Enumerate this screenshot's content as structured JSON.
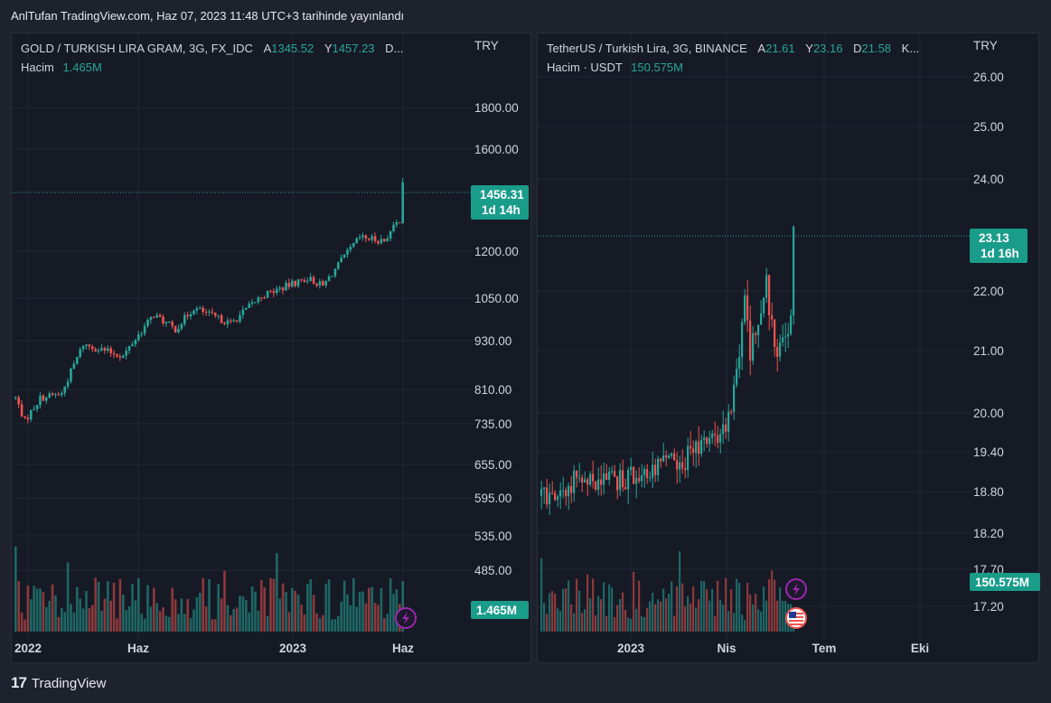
{
  "header": {
    "title": "AnlTufan TradingView.com, Haz 07, 2023 11:48 UTC+3 tarihinde yayınlandı"
  },
  "footer": {
    "logo_mark": "17",
    "brand": "TradingView"
  },
  "colors": {
    "up": "#26a69a",
    "down": "#ef5350",
    "bg": "#161a25",
    "grid": "#232734",
    "tag": "#1a9c8a",
    "event": "#9c27b0"
  },
  "icons": {
    "event_flash": "lightning-bolt-icon",
    "event_flag": "us-flag-icon"
  },
  "chart_data": [
    {
      "type": "candlestick",
      "legend": {
        "title": "GOLD / TURKISH LIRA GRAM, 3G, FX_IDC",
        "items": [
          {
            "key": "A",
            "value": "1345.52"
          },
          {
            "key": "Y",
            "value": "1457.23"
          },
          {
            "key": "D...",
            "value": ""
          }
        ],
        "volume_label": "Hacim",
        "volume_value": "1.465M"
      },
      "currency": "TRY",
      "scale": "log",
      "ylim": [
        500,
        2150
      ],
      "y_ticks": [
        "1800.00",
        "1600.00",
        "1200.00",
        "1050.00",
        "930.00",
        "810.00",
        "735.00",
        "655.00",
        "595.00",
        "535.00",
        "485.00"
      ],
      "x_ticks": [
        "2022",
        "Haz",
        "2023",
        "Haz"
      ],
      "last_price": "1456.31",
      "countdown": "1d 14h",
      "volume_tag": "1.465M",
      "anchors": [
        [
          0,
          790
        ],
        [
          3,
          740
        ],
        [
          8,
          790
        ],
        [
          15,
          800
        ],
        [
          22,
          920
        ],
        [
          35,
          890
        ],
        [
          45,
          1000
        ],
        [
          52,
          960
        ],
        [
          58,
          1020
        ],
        [
          70,
          975
        ],
        [
          80,
          1055
        ],
        [
          95,
          1110
        ],
        [
          100,
          1085
        ],
        [
          112,
          1245
        ],
        [
          120,
          1235
        ],
        [
          125,
          1310
        ],
        [
          126,
          1456
        ]
      ],
      "n_candles": 127
    },
    {
      "type": "candlestick",
      "legend": {
        "title": "TetherUS / Turkish Lira, 3G, BINANCE",
        "items": [
          {
            "key": "A",
            "value": "21.61"
          },
          {
            "key": "Y",
            "value": "23.16"
          },
          {
            "key": "D",
            "value": "21.58"
          },
          {
            "key": "K...",
            "value": ""
          }
        ],
        "volume_label": "Hacim · USDT",
        "volume_value": "150.575M"
      },
      "currency": "TRY",
      "scale": "log",
      "ylim": [
        17.1,
        26.5
      ],
      "y_ticks": [
        "26.00",
        "25.00",
        "24.00",
        "22.00",
        "21.00",
        "20.00",
        "19.40",
        "18.80",
        "18.20",
        "17.70",
        "17.20"
      ],
      "x_ticks": [
        "2023",
        "Nis",
        "Tem",
        "Eki"
      ],
      "last_price": "23.13",
      "countdown": "1d 16h",
      "volume_tag": "150.575M",
      "anchors": [
        [
          0,
          18.75
        ],
        [
          8,
          18.7
        ],
        [
          14,
          19.1
        ],
        [
          20,
          18.9
        ],
        [
          30,
          18.95
        ],
        [
          40,
          19.15
        ],
        [
          50,
          19.2
        ],
        [
          60,
          19.5
        ],
        [
          68,
          19.8
        ],
        [
          72,
          20.6
        ],
        [
          75,
          21.9
        ],
        [
          77,
          21.0
        ],
        [
          80,
          21.4
        ],
        [
          83,
          22.1
        ],
        [
          86,
          20.9
        ],
        [
          90,
          21.3
        ],
        [
          92,
          21.5
        ],
        [
          93,
          23.13
        ]
      ],
      "n_candles": 94
    }
  ]
}
